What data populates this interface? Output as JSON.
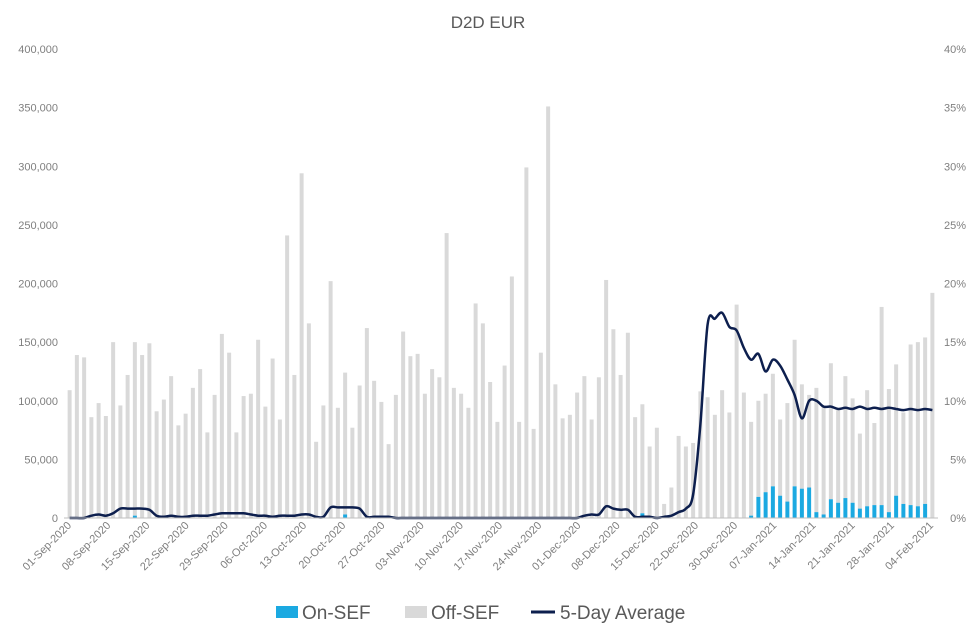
{
  "chart_data": {
    "type": "bar",
    "title": "D2D EUR",
    "xlabel": "",
    "ylabel": "",
    "ylim": [
      0,
      400000
    ],
    "y2lim": [
      0,
      0.4
    ],
    "yticks": [
      "0",
      "50,000",
      "100,000",
      "150,000",
      "200,000",
      "250,000",
      "300,000",
      "350,000",
      "400,000"
    ],
    "y2ticks": [
      "0%",
      "5%",
      "10%",
      "15%",
      "20%",
      "25%",
      "30%",
      "35%",
      "40%"
    ],
    "xticks": [
      "01-Sep-2020",
      "08-Sep-2020",
      "15-Sep-2020",
      "22-Sep-2020",
      "29-Sep-2020",
      "06-Oct-2020",
      "13-Oct-2020",
      "20-Oct-2020",
      "27-Oct-2020",
      "03-Nov-2020",
      "10-Nov-2020",
      "17-Nov-2020",
      "24-Nov-2020",
      "01-Dec-2020",
      "08-Dec-2020",
      "15-Dec-2020",
      "22-Dec-2020",
      "30-Dec-2020",
      "07-Jan-2021",
      "14-Jan-2021",
      "21-Jan-2021",
      "28-Jan-2021",
      "04-Feb-2021"
    ],
    "legend_position": "bottom",
    "grid": false,
    "stacked": true,
    "series": [
      {
        "name": "On-SEF",
        "kind": "bar",
        "axis": "left",
        "color": "#1ba9e1",
        "values": [
          0,
          0,
          0,
          0,
          0,
          0,
          0,
          0,
          0,
          2000,
          0,
          0,
          0,
          0,
          0,
          0,
          0,
          0,
          0,
          0,
          0,
          0,
          0,
          0,
          0,
          0,
          0,
          0,
          0,
          0,
          0,
          0,
          0,
          0,
          0,
          0,
          0,
          0,
          3000,
          0,
          0,
          0,
          0,
          0,
          0,
          0,
          0,
          0,
          0,
          0,
          0,
          0,
          0,
          0,
          0,
          0,
          0,
          0,
          0,
          0,
          0,
          0,
          0,
          0,
          0,
          0,
          0,
          0,
          0,
          0,
          0,
          0,
          0,
          0,
          0,
          0,
          0,
          0,
          0,
          4000,
          0,
          0,
          0,
          0,
          0,
          0,
          0,
          0,
          0,
          0,
          0,
          0,
          0,
          0,
          2000,
          18000,
          22000,
          27000,
          19000,
          14000,
          27000,
          25000,
          26000,
          5000,
          3000,
          16000,
          13000,
          17000,
          13000,
          8000,
          10000,
          11000,
          11000,
          5000,
          19000,
          12000,
          11000,
          10000,
          12000
        ]
      },
      {
        "name": "Off-SEF",
        "kind": "bar",
        "axis": "left",
        "color": "#d9d9d9",
        "values": [
          109000,
          139000,
          137000,
          86000,
          98000,
          87000,
          150000,
          96000,
          122000,
          148000,
          139000,
          149000,
          91000,
          101000,
          121000,
          79000,
          89000,
          111000,
          127000,
          73000,
          105000,
          157000,
          141000,
          73000,
          104000,
          106000,
          152000,
          95000,
          136000,
          84000,
          241000,
          122000,
          294000,
          166000,
          65000,
          96000,
          202000,
          94000,
          121000,
          77000,
          113000,
          162000,
          117000,
          99000,
          63000,
          105000,
          159000,
          138000,
          140000,
          106000,
          127000,
          120000,
          243000,
          111000,
          106000,
          94000,
          183000,
          166000,
          116000,
          82000,
          130000,
          206000,
          82000,
          299000,
          76000,
          141000,
          351000,
          114000,
          85000,
          88000,
          107000,
          121000,
          84000,
          120000,
          203000,
          161000,
          122000,
          158000,
          86000,
          93000,
          61000,
          77000,
          12000,
          26000,
          70000,
          61000,
          64000,
          108000,
          103000,
          88000,
          109000,
          90000,
          182000,
          107000,
          80000,
          82000,
          84000,
          96000,
          65000,
          84000,
          125000,
          89000,
          79000,
          106000,
          92000,
          116000,
          79000,
          104000,
          89000,
          64000,
          99000,
          70000,
          169000,
          105000,
          112000,
          78000,
          137000,
          140000,
          142000,
          192000
        ]
      },
      {
        "name": "5-Day Average",
        "kind": "line",
        "axis": "right",
        "color": "#0d1f4e",
        "values": [
          0,
          0,
          0,
          0.002,
          0.003,
          0.002,
          0.004,
          0.008,
          0.008,
          0.008,
          0.008,
          0.007,
          0.002,
          0.001,
          0.002,
          0.001,
          0.001,
          0.002,
          0.002,
          0.002,
          0.003,
          0.004,
          0.004,
          0.004,
          0.004,
          0.003,
          0.002,
          0.002,
          0.001,
          0.002,
          0.002,
          0.002,
          0.003,
          0.003,
          0.001,
          0.001,
          0.009,
          0.009,
          0.009,
          0.009,
          0.008,
          0.001,
          0.001,
          0.001,
          0.001,
          0,
          0,
          0,
          0,
          0,
          0,
          0,
          0,
          0,
          0,
          0,
          0,
          0,
          0,
          0,
          0,
          0,
          0,
          0,
          0,
          0,
          0,
          0,
          0,
          0,
          0,
          0.002,
          0.003,
          0.003,
          0.01,
          0.008,
          0.007,
          0.007,
          0.001,
          0.001,
          0.001,
          0,
          0.001,
          0.002,
          0.005,
          0.008,
          0.02,
          0.08,
          0.165,
          0.17,
          0.175,
          0.163,
          0.16,
          0.145,
          0.135,
          0.14,
          0.125,
          0.135,
          0.13,
          0.118,
          0.105,
          0.085,
          0.1,
          0.1,
          0.095,
          0.095,
          0.093,
          0.094,
          0.093,
          0.095,
          0.093,
          0.094,
          0.093,
          0.094,
          0.093,
          0.092,
          0.093,
          0.092,
          0.093,
          0.092
        ]
      }
    ]
  }
}
